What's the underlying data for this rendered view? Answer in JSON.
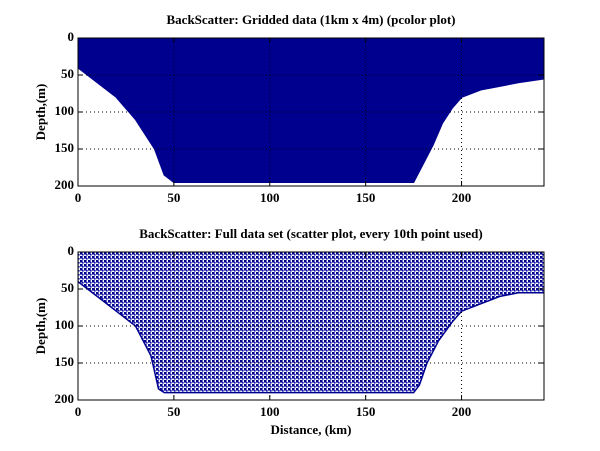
{
  "chart_data": [
    {
      "type": "pcolor",
      "title": "BackScatter: Gridded data (1km x 4m) (pcolor plot)",
      "ylabel": "Depth,(m)",
      "x": [
        0,
        10,
        20,
        30,
        40,
        45,
        50,
        175,
        180,
        185,
        190,
        195,
        200,
        210,
        220,
        230,
        243
      ],
      "values": [
        40,
        60,
        80,
        110,
        150,
        185,
        195,
        195,
        170,
        145,
        115,
        95,
        80,
        70,
        65,
        60,
        55
      ],
      "color": "#00008f",
      "xlim": [
        0,
        243
      ],
      "ylim": [
        0,
        200
      ],
      "y_inverted": true,
      "xticks": [
        0,
        50,
        100,
        150,
        200
      ],
      "yticks": [
        0,
        50,
        100,
        150,
        200
      ],
      "grid": true
    },
    {
      "type": "scatter",
      "title": "BackScatter: Full data set (scatter plot, every 10th point used)",
      "ylabel": "Depth,(m)",
      "xlabel": "Distance, (km)",
      "x": [
        0,
        10,
        20,
        30,
        38,
        42,
        45,
        175,
        178,
        182,
        188,
        195,
        200,
        210,
        220,
        230,
        243
      ],
      "values": [
        40,
        60,
        80,
        100,
        140,
        185,
        190,
        190,
        180,
        150,
        120,
        95,
        80,
        70,
        60,
        55,
        55
      ],
      "color": "#00008f",
      "xlim": [
        0,
        243
      ],
      "ylim": [
        0,
        200
      ],
      "y_inverted": true,
      "xticks": [
        0,
        50,
        100,
        150,
        200
      ],
      "yticks": [
        0,
        50,
        100,
        150,
        200
      ],
      "grid": true
    }
  ]
}
